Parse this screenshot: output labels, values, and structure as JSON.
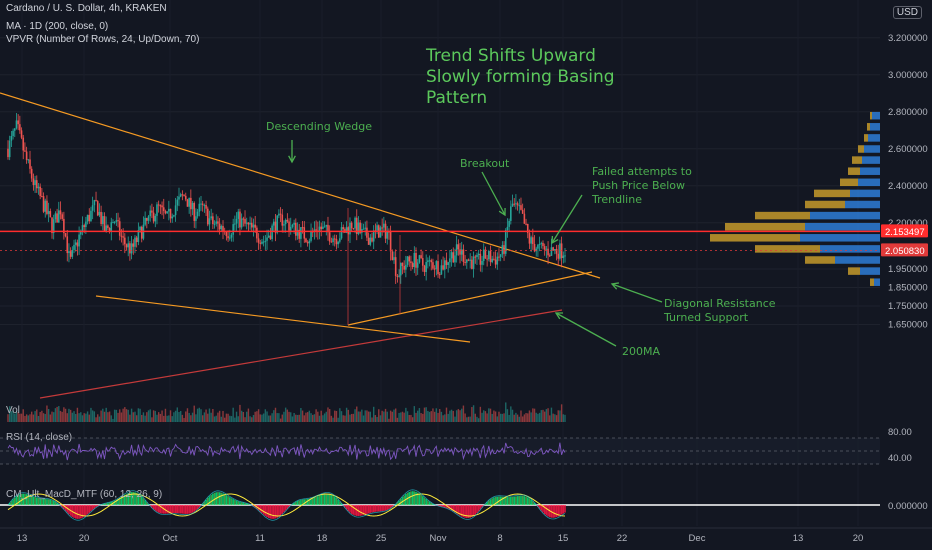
{
  "header": {
    "symbol_line": "Cardano / U. S. Dollar, 4h, KRAKEN",
    "indicator_ma": "MA · 1D (200, close, 0)",
    "indicator_vpvr": "VPVR (Number Of Rows, 24, Up/Down, 70)",
    "currency_badge": "USD"
  },
  "panels": {
    "vol_label": "Vol",
    "rsi_label": "RSI (14, close)",
    "macd_label": "CM_Ult_MacD_MTF (60, 12, 26, 9)"
  },
  "annotations": {
    "trend_line1": "Trend Shifts Upward",
    "trend_line2": "Slowly forming Basing",
    "trend_line3": "Pattern",
    "wedge": "Descending Wedge",
    "breakout": "Breakout",
    "failed_line1": "Failed attempts to",
    "failed_line2": "Push Price Below",
    "failed_line3": "Trendline",
    "diag_line1": "Diagonal Resistance",
    "diag_line2": "Turned Support",
    "ma200": "200MA"
  },
  "colors": {
    "background": "#131722",
    "bull": "#26a69a",
    "bear": "#ef5350",
    "trendline": "#f59a23",
    "ma200": "#c43a3a",
    "hline": "#ff2d2d",
    "annotation": "#4caf50",
    "vpvr_up": "#2e7cd6",
    "vpvr_down": "#c69a2a"
  },
  "chart_data": {
    "type": "candlestick",
    "timeframe": "4h",
    "y_axis_ticks": [
      "3.200000",
      "3.000000",
      "2.800000",
      "2.600000",
      "2.400000",
      "2.200000",
      "1.950000",
      "1.850000",
      "1.750000",
      "1.650000"
    ],
    "price_labels": [
      {
        "value": 2.153497,
        "label": "2.153497",
        "color": "#ff2d2d"
      },
      {
        "value": 2.05083,
        "label": "2.050830",
        "color": "#e03a3a"
      }
    ],
    "x_axis_ticks": [
      "13",
      "20",
      "Oct",
      "11",
      "18",
      "25",
      "Nov",
      "8",
      "15",
      "22",
      "Dec",
      "13",
      "20"
    ],
    "price_path": [
      [
        "13",
        2.6
      ],
      [
        "14",
        2.72
      ],
      [
        "15",
        2.55
      ],
      [
        "16",
        2.4
      ],
      [
        "17",
        2.3
      ],
      [
        "18",
        2.18
      ],
      [
        "19",
        2.28
      ],
      [
        "20",
        1.98
      ],
      [
        "21",
        2.12
      ],
      [
        "22",
        2.22
      ],
      [
        "23",
        2.3
      ],
      [
        "24",
        2.15
      ],
      [
        "25",
        2.22
      ],
      [
        "26",
        2.1
      ],
      [
        "27",
        2.05
      ],
      [
        "28",
        2.15
      ],
      [
        "29",
        2.22
      ],
      [
        "30",
        2.28
      ],
      [
        "Oct",
        2.22
      ],
      [
        "2",
        2.3
      ],
      [
        "3",
        2.35
      ],
      [
        "4",
        2.25
      ],
      [
        "5",
        2.28
      ],
      [
        "6",
        2.2
      ],
      [
        "7",
        2.18
      ],
      [
        "8",
        2.15
      ],
      [
        "9",
        2.22
      ],
      [
        "10",
        2.18
      ],
      [
        "11",
        2.15
      ],
      [
        "12",
        2.1
      ],
      [
        "13",
        2.18
      ],
      [
        "14",
        2.22
      ],
      [
        "15",
        2.18
      ],
      [
        "16",
        2.15
      ],
      [
        "17",
        2.12
      ],
      [
        "18",
        2.18
      ],
      [
        "19",
        2.15
      ],
      [
        "20",
        2.12
      ],
      [
        "21",
        2.15
      ],
      [
        "22",
        2.2
      ],
      [
        "23",
        2.14
      ],
      [
        "24",
        2.12
      ],
      [
        "25",
        2.16
      ],
      [
        "26",
        2.15
      ],
      [
        "27",
        1.92
      ],
      [
        "28",
        1.98
      ],
      [
        "29",
        2.0
      ],
      [
        "30",
        1.97
      ],
      [
        "31",
        1.98
      ],
      [
        "Nov",
        1.96
      ],
      [
        "2",
        2.02
      ],
      [
        "3",
        2.05
      ],
      [
        "4",
        2.0
      ],
      [
        "5",
        1.98
      ],
      [
        "6",
        2.02
      ],
      [
        "7",
        2.0
      ],
      [
        "8",
        2.04
      ],
      [
        "9",
        2.3
      ],
      [
        "10",
        2.25
      ],
      [
        "11",
        2.1
      ],
      [
        "12",
        2.06
      ],
      [
        "13",
        2.05
      ],
      [
        "14",
        2.05
      ],
      [
        "15",
        2.05
      ]
    ],
    "rsi": {
      "levels": [
        70,
        50,
        30
      ],
      "axis_labels": [
        "80.00",
        "40.00"
      ]
    },
    "macd": {
      "axis_label": "0.000000"
    }
  }
}
